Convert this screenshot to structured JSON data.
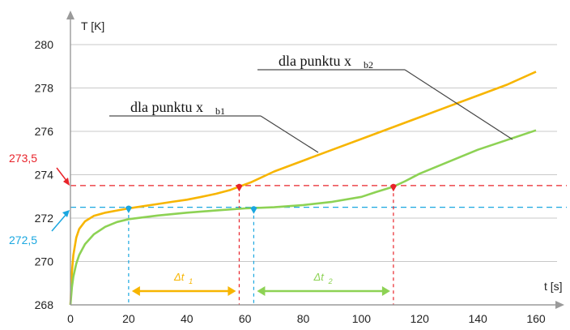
{
  "chart_data": {
    "type": "line",
    "xlabel": "t [s]",
    "ylabel": "T [K]",
    "xlim": [
      0,
      160
    ],
    "ylim": [
      268,
      280
    ],
    "x_ticks": [
      "0",
      "20",
      "40",
      "60",
      "80",
      "100",
      "120",
      "140",
      "160"
    ],
    "y_ticks": [
      "268",
      "270",
      "272",
      "274",
      "276",
      "278",
      "280"
    ],
    "grid": "horizontal",
    "series": [
      {
        "name": "dla punktu x_b2",
        "color": "#f7b500",
        "points": [
          [
            0,
            268.0
          ],
          [
            0.5,
            269.5
          ],
          [
            1,
            270.3
          ],
          [
            2,
            271.1
          ],
          [
            3,
            271.5
          ],
          [
            5,
            271.85
          ],
          [
            8,
            272.1
          ],
          [
            12,
            272.25
          ],
          [
            16,
            272.35
          ],
          [
            20,
            272.45
          ],
          [
            25,
            272.55
          ],
          [
            30,
            272.65
          ],
          [
            35,
            272.75
          ],
          [
            40,
            272.85
          ],
          [
            45,
            272.98
          ],
          [
            50,
            273.12
          ],
          [
            55,
            273.3
          ],
          [
            58,
            273.45
          ],
          [
            62,
            273.65
          ],
          [
            70,
            274.15
          ],
          [
            80,
            274.65
          ],
          [
            90,
            275.15
          ],
          [
            100,
            275.65
          ],
          [
            110,
            276.15
          ],
          [
            120,
            276.65
          ],
          [
            130,
            277.15
          ],
          [
            140,
            277.65
          ],
          [
            150,
            278.15
          ],
          [
            160,
            278.75
          ]
        ]
      },
      {
        "name": "dla punktu x_b1",
        "color": "#8dd254",
        "points": [
          [
            0,
            268.0
          ],
          [
            0.5,
            268.8
          ],
          [
            1,
            269.3
          ],
          [
            2,
            269.9
          ],
          [
            3,
            270.3
          ],
          [
            5,
            270.8
          ],
          [
            8,
            271.25
          ],
          [
            12,
            271.6
          ],
          [
            16,
            271.82
          ],
          [
            20,
            271.95
          ],
          [
            30,
            272.12
          ],
          [
            40,
            272.25
          ],
          [
            50,
            272.35
          ],
          [
            60,
            272.45
          ],
          [
            70,
            272.5
          ],
          [
            80,
            272.6
          ],
          [
            90,
            272.75
          ],
          [
            100,
            272.98
          ],
          [
            105,
            273.2
          ],
          [
            111,
            273.45
          ],
          [
            115,
            273.7
          ],
          [
            120,
            274.05
          ],
          [
            130,
            274.6
          ],
          [
            140,
            275.15
          ],
          [
            150,
            275.6
          ],
          [
            160,
            276.05
          ]
        ]
      }
    ],
    "annotations": {
      "curve_label_upper": {
        "text": "dla punktu x",
        "sub": "b2"
      },
      "curve_label_lower": {
        "text": "dla punktu x",
        "sub": "b1"
      },
      "ref_high": {
        "value": 273.5,
        "label": "273,5",
        "color": "#e8232a"
      },
      "ref_low": {
        "value": 272.5,
        "label": "272,5",
        "color": "#1aa7e0"
      },
      "markers": [
        {
          "x": 20,
          "y": 272.45,
          "color": "#1aa7e0",
          "series": "x_b2"
        },
        {
          "x": 58,
          "y": 273.45,
          "color": "#e8232a",
          "series": "x_b2"
        },
        {
          "x": 63,
          "y": 272.42,
          "color": "#1aa7e0",
          "series": "x_b1"
        },
        {
          "x": 111,
          "y": 273.45,
          "color": "#e8232a",
          "series": "x_b1"
        }
      ],
      "intervals": [
        {
          "from": 20,
          "to": 58,
          "label": "Δt",
          "sub": "1",
          "color": "#f7b500"
        },
        {
          "from": 63,
          "to": 111,
          "label": "Δt",
          "sub": "2",
          "color": "#8dd254"
        }
      ]
    }
  }
}
